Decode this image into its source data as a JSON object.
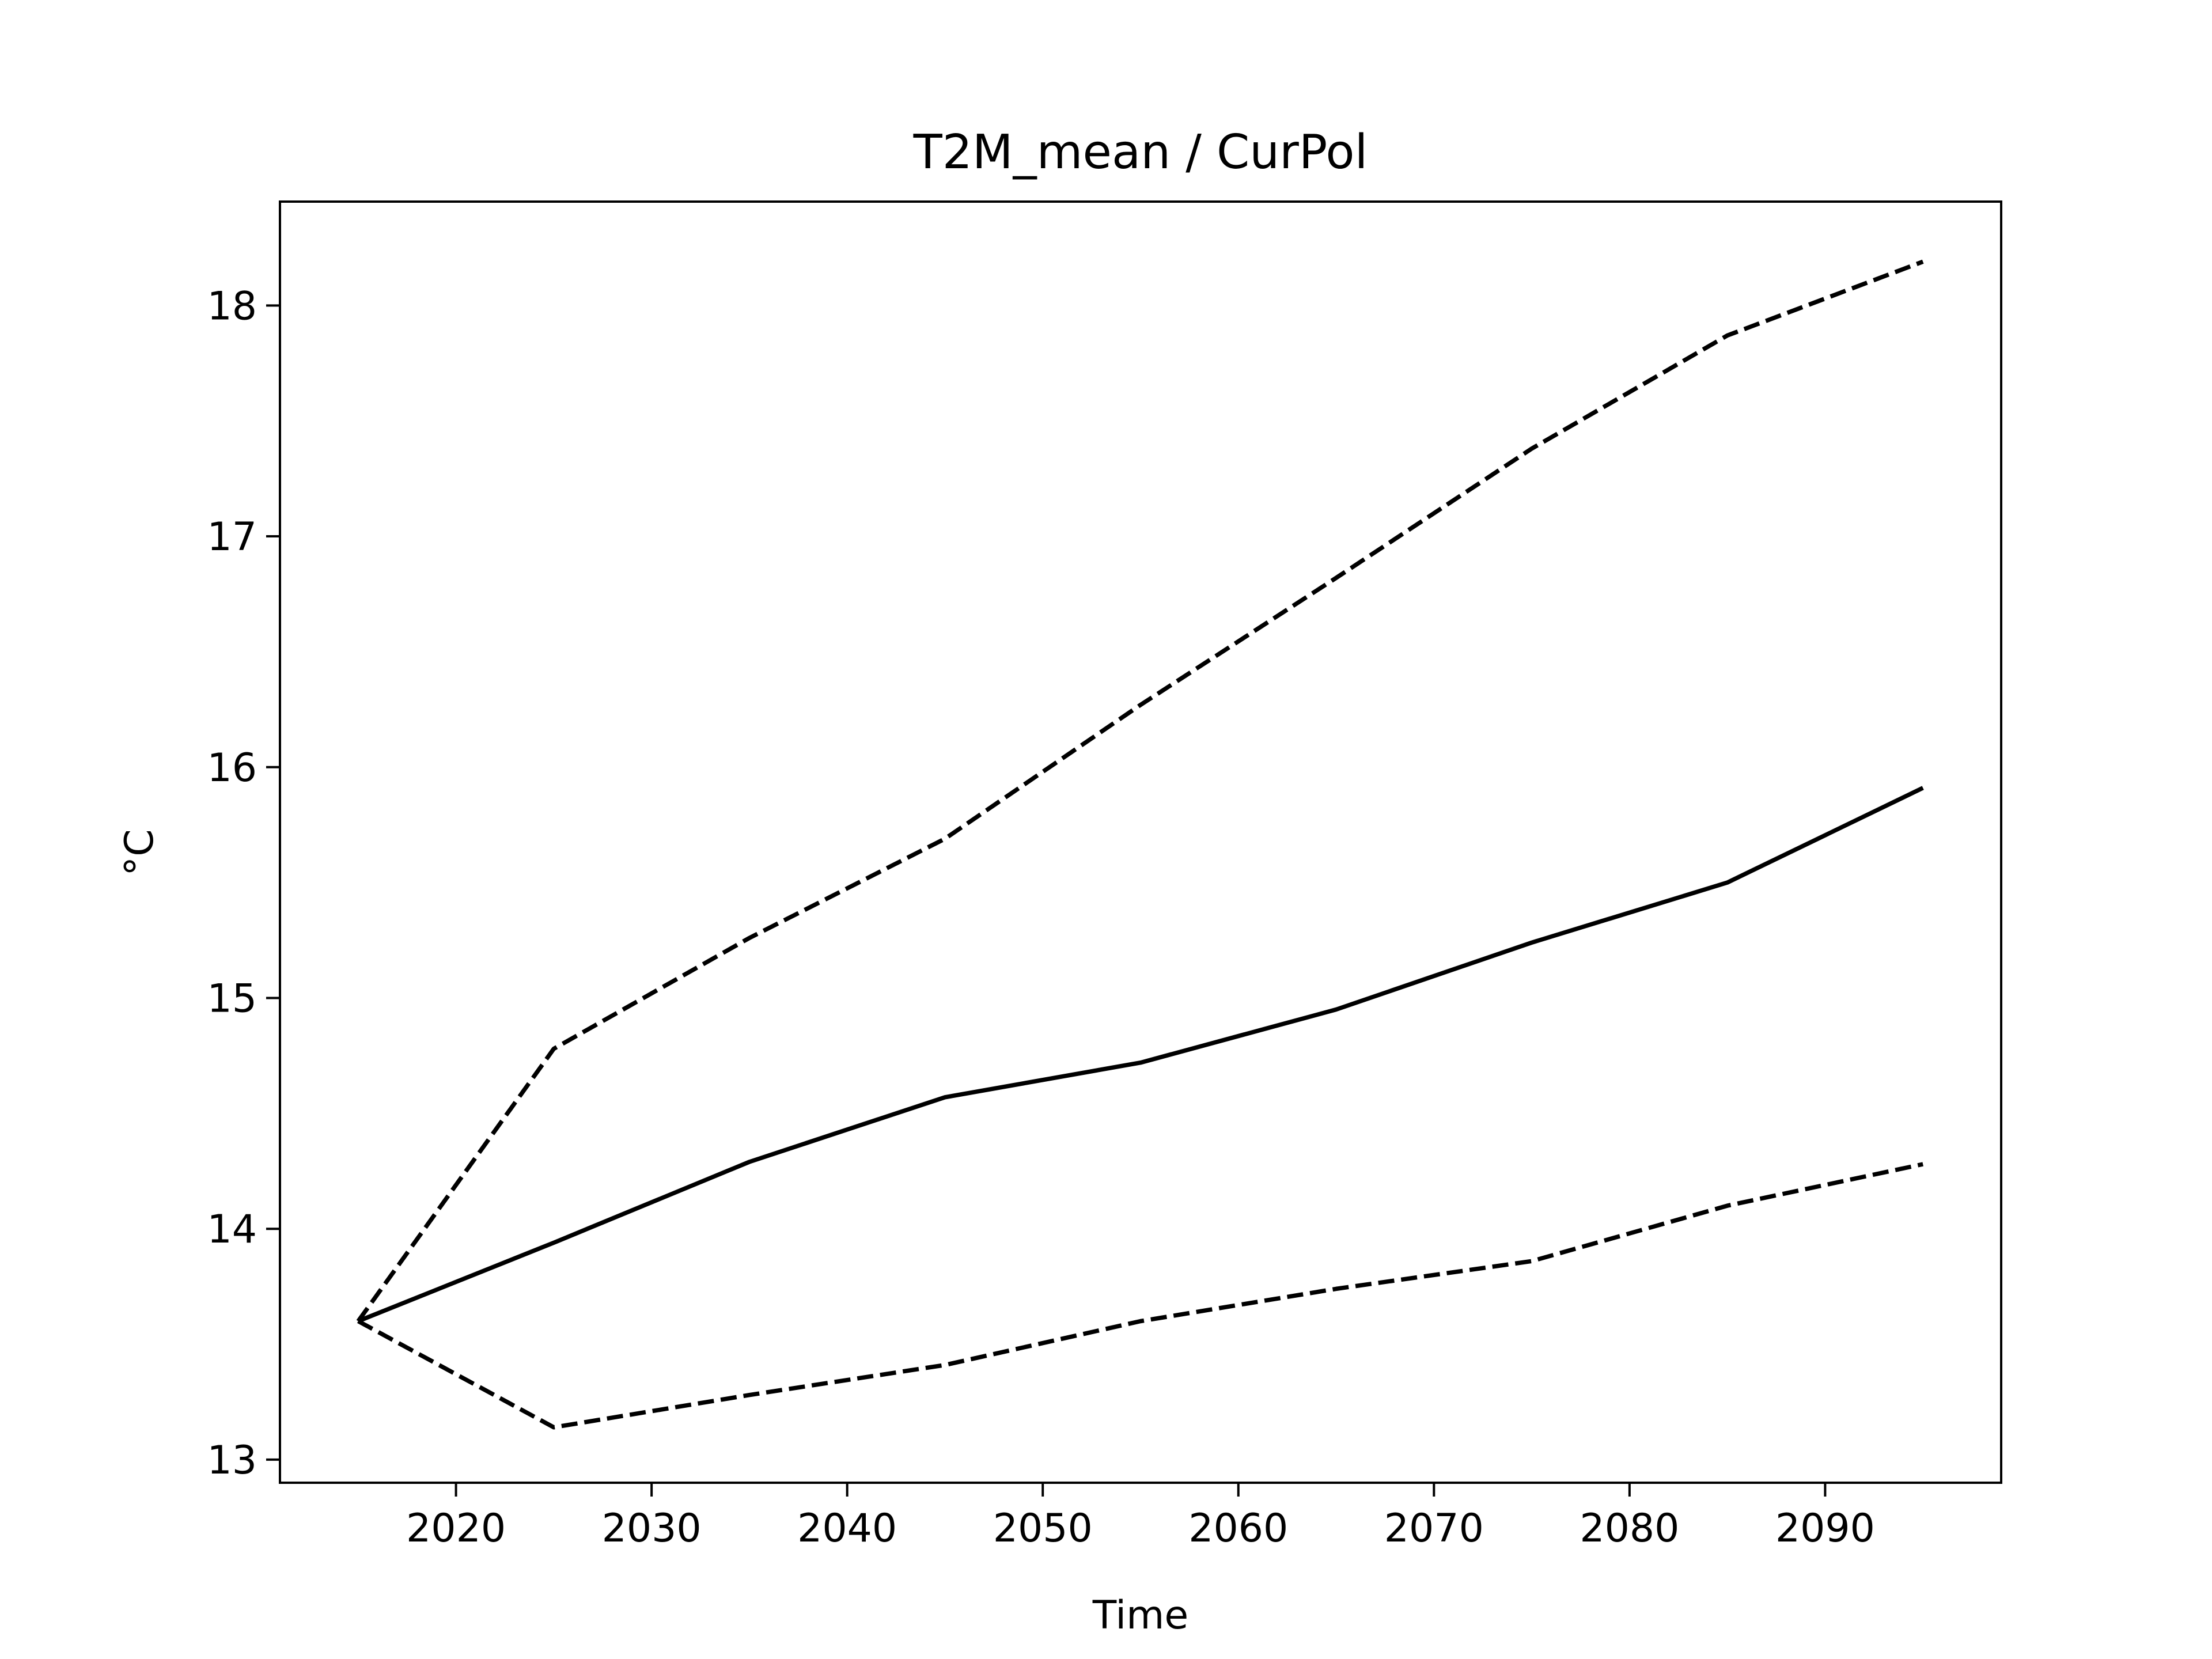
{
  "chart_data": {
    "type": "line",
    "title": "T2M_mean / CurPol",
    "xlabel": "Time",
    "ylabel": "°C",
    "xlim": [
      2011,
      2099
    ],
    "ylim": [
      12.9,
      18.45
    ],
    "x_ticks": [
      2020,
      2030,
      2040,
      2050,
      2060,
      2070,
      2080,
      2090
    ],
    "y_ticks": [
      13,
      14,
      15,
      16,
      17,
      18
    ],
    "grid": false,
    "legend": "none",
    "x": [
      2015,
      2025,
      2035,
      2045,
      2055,
      2065,
      2075,
      2085,
      2095
    ],
    "series": [
      {
        "style": "solid",
        "color": "#000000",
        "values": [
          13.6,
          13.94,
          14.29,
          14.57,
          14.72,
          14.95,
          15.24,
          15.5,
          15.91
        ]
      },
      {
        "style": "dashed",
        "color": "#000000",
        "values": [
          13.6,
          14.78,
          15.26,
          15.69,
          16.27,
          16.82,
          17.38,
          17.87,
          18.19
        ]
      },
      {
        "style": "dashed",
        "color": "#000000",
        "values": [
          13.6,
          13.14,
          13.28,
          13.41,
          13.6,
          13.74,
          13.86,
          14.1,
          14.28
        ]
      }
    ]
  }
}
